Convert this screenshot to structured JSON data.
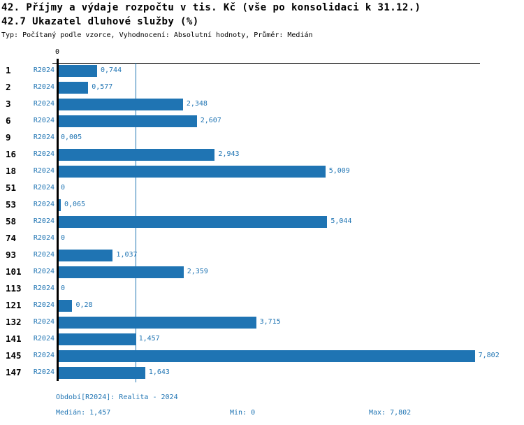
{
  "header": {
    "title": "42. Příjmy a výdaje rozpočtu v tis. Kč (vše po konsolidaci k 31.12.)",
    "subtitle": "42.7 Ukazatel dluhové služby (%)",
    "meta": "Typ: Počítaný podle vzorce, Vyhodnocení: Absolutní hodnoty, Průměr: Medián"
  },
  "chart_data": {
    "type": "bar",
    "orientation": "horizontal",
    "title": "42.7 Ukazatel dluhové služby (%)",
    "axis_zero_label": "0",
    "series_label": "R2024",
    "categories": [
      "1",
      "2",
      "3",
      "6",
      "9",
      "16",
      "18",
      "51",
      "53",
      "58",
      "74",
      "93",
      "101",
      "113",
      "121",
      "132",
      "141",
      "145",
      "147"
    ],
    "values": [
      0.744,
      0.577,
      2.348,
      2.607,
      0.005,
      2.943,
      5.009,
      0,
      0.065,
      5.044,
      0,
      1.037,
      2.359,
      0,
      0.28,
      3.715,
      1.457,
      7.802,
      1.643
    ],
    "value_labels": [
      "0,744",
      "0,577",
      "2,348",
      "2,607",
      "0,005",
      "2,943",
      "5,009",
      "0",
      "0,065",
      "5,044",
      "0",
      "1,037",
      "2,359",
      "0",
      "0,28",
      "3,715",
      "1,457",
      "7,802",
      "1,643"
    ],
    "xlim": [
      0,
      7.802
    ],
    "median": 1.457,
    "min": 0,
    "max": 7.802,
    "grid": false,
    "colors": {
      "bar": "#1F74B3",
      "axis": "#000000"
    }
  },
  "footer": {
    "period": "Období[R2024]: Realita - 2024",
    "median": "Medián: 1,457",
    "min": "Min: 0",
    "max": "Max: 7,802"
  }
}
